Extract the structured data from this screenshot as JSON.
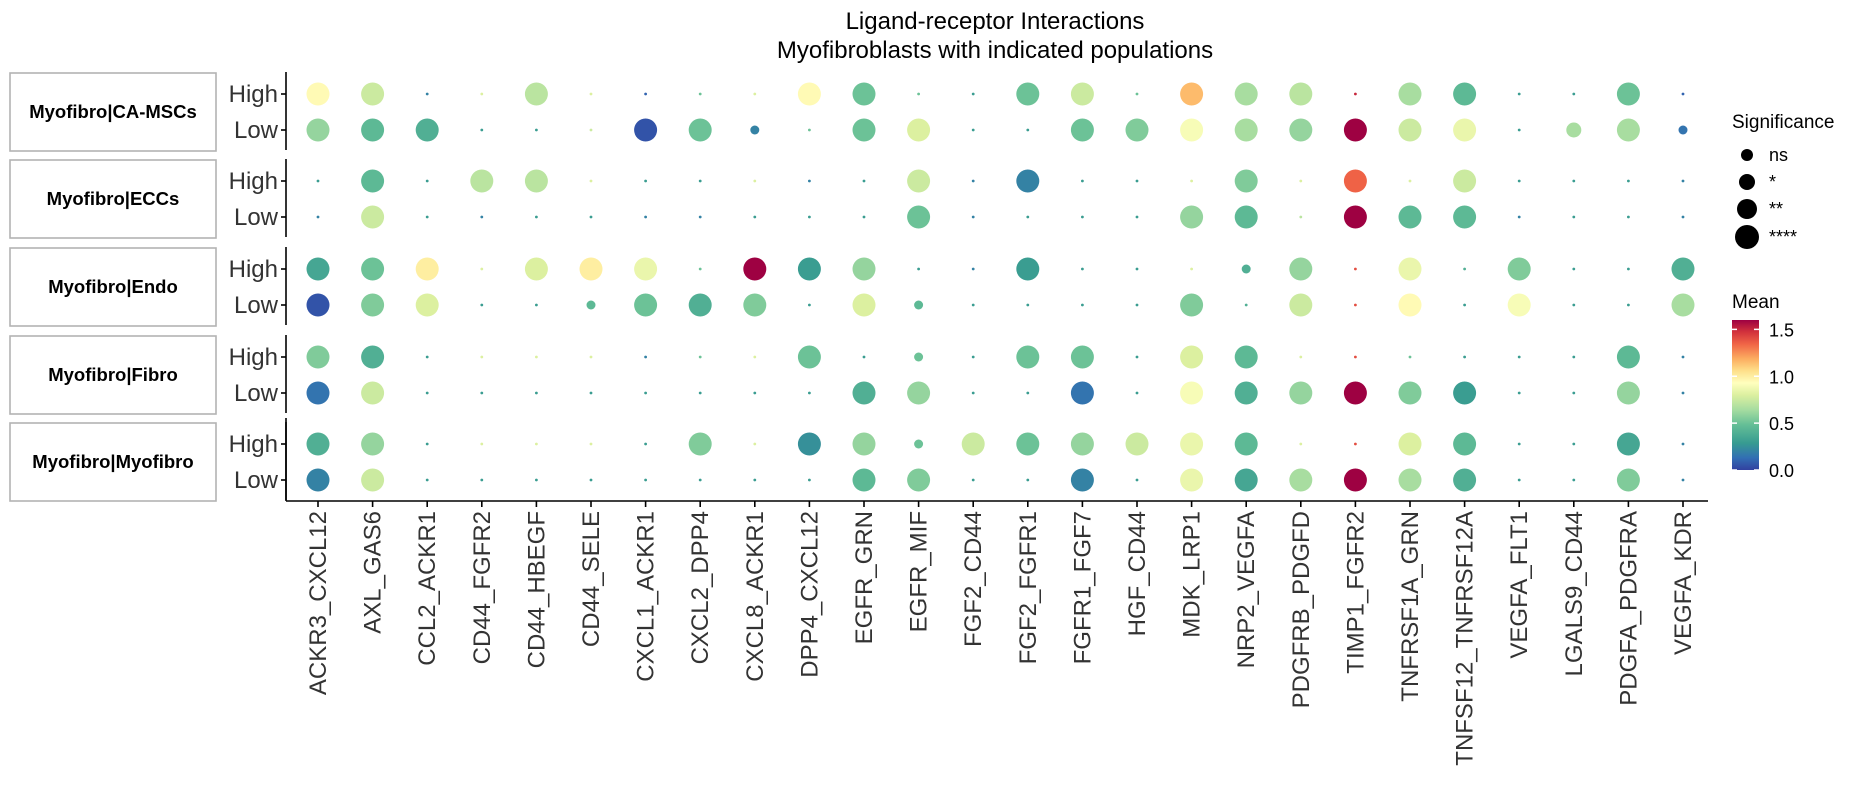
{
  "chart_data": {
    "type": "scatter",
    "title": [
      "Ligand-receptor Interactions",
      "Myofibroblasts with indicated populations"
    ],
    "xlabel": "",
    "ylabel": "",
    "pairs": [
      "ACKR3_CXCL12",
      "AXL_GAS6",
      "CCL2_ACKR1",
      "CD44_FGFR2",
      "CD44_HBEGF",
      "CD44_SELE",
      "CXCL1_ACKR1",
      "CXCL2_DPP4",
      "CXCL8_ACKR1",
      "DPP4_CXCL12",
      "EGFR_GRN",
      "EGFR_MIF",
      "FGF2_CD44",
      "FGF2_FGFR1",
      "FGFR1_FGF7",
      "HGF_CD44",
      "MDK_LRP1",
      "NRP2_VEGFA",
      "PDGFRB_PDGFD",
      "TIMP1_FGFR2",
      "TNFRSF1A_GRN",
      "TNFSF12_TNFRSF12A",
      "VEGFA_FLT1",
      "LGALS9_CD44",
      "PDGFA_PDGFRA",
      "VEGFA_KDR"
    ],
    "row_labels": [
      "High",
      "Low"
    ],
    "facets": [
      {
        "name": "Myofibro|CA-MSCs",
        "rows": [
          {
            "label": "High",
            "mean": [
              0.95,
              0.75,
              0.2,
              0.8,
              0.7,
              0.8,
              0.1,
              0.5,
              0.8,
              0.95,
              0.5,
              0.5,
              0.3,
              0.5,
              0.75,
              0.5,
              1.15,
              0.65,
              0.7,
              1.5,
              0.65,
              0.45,
              0.3,
              0.3,
              0.5,
              0.1
            ],
            "size": [
              3,
              3,
              0,
              0,
              3,
              0,
              0,
              0,
              0,
              3,
              3,
              0,
              0,
              3,
              3,
              0,
              3,
              3,
              3,
              0,
              3,
              3,
              0,
              0,
              3,
              0
            ]
          },
          {
            "label": "Low",
            "mean": [
              0.6,
              0.45,
              0.4,
              0.3,
              0.3,
              0.75,
              0.05,
              0.5,
              0.2,
              0.5,
              0.5,
              0.8,
              0.3,
              0.3,
              0.5,
              0.55,
              0.9,
              0.65,
              0.6,
              1.6,
              0.75,
              0.85,
              0.3,
              0.65,
              0.65,
              0.15
            ],
            "size": [
              3,
              3,
              3,
              0,
              0,
              0,
              3,
              3,
              1,
              0,
              3,
              3,
              0,
              0,
              3,
              3,
              3,
              3,
              3,
              3,
              3,
              3,
              0,
              2,
              3,
              1
            ]
          }
        ]
      },
      {
        "name": "Myofibro|ECCs",
        "rows": [
          {
            "label": "High",
            "mean": [
              0.3,
              0.45,
              0.3,
              0.7,
              0.7,
              0.8,
              0.3,
              0.3,
              0.8,
              0.2,
              0.3,
              0.75,
              0.2,
              0.2,
              0.3,
              0.3,
              0.8,
              0.55,
              0.8,
              1.35,
              0.8,
              0.75,
              0.3,
              0.3,
              0.3,
              0.2
            ],
            "size": [
              0,
              3,
              0,
              3,
              3,
              0,
              0,
              0,
              0,
              0,
              0,
              3,
              0,
              3,
              0,
              0,
              0,
              3,
              0,
              3,
              0,
              3,
              0,
              0,
              0,
              0
            ]
          },
          {
            "label": "Low",
            "mean": [
              0.2,
              0.75,
              0.3,
              0.2,
              0.3,
              0.3,
              0.2,
              0.2,
              0.3,
              0.3,
              0.3,
              0.5,
              0.2,
              0.3,
              0.3,
              0.3,
              0.6,
              0.45,
              0.7,
              1.6,
              0.45,
              0.45,
              0.2,
              0.3,
              0.3,
              0.2
            ],
            "size": [
              0,
              3,
              0,
              0,
              0,
              0,
              0,
              0,
              0,
              0,
              0,
              3,
              0,
              0,
              0,
              0,
              3,
              3,
              0,
              3,
              3,
              3,
              0,
              0,
              0,
              0
            ]
          }
        ]
      },
      {
        "name": "Myofibro|Endo",
        "rows": [
          {
            "label": "High",
            "mean": [
              0.35,
              0.5,
              1.0,
              0.8,
              0.8,
              1.0,
              0.85,
              0.5,
              1.6,
              0.3,
              0.6,
              0.3,
              0.2,
              0.3,
              0.3,
              0.3,
              0.8,
              0.4,
              0.6,
              1.4,
              0.85,
              0.4,
              0.55,
              0.3,
              0.3,
              0.4
            ],
            "size": [
              3,
              3,
              3,
              0,
              3,
              3,
              3,
              0,
              3,
              3,
              3,
              0,
              0,
              3,
              0,
              0,
              0,
              1,
              3,
              0,
              3,
              0,
              3,
              0,
              0,
              3
            ]
          },
          {
            "label": "Low",
            "mean": [
              0.05,
              0.55,
              0.8,
              0.3,
              0.3,
              0.45,
              0.5,
              0.4,
              0.55,
              0.3,
              0.8,
              0.45,
              0.3,
              0.3,
              0.3,
              0.3,
              0.55,
              0.4,
              0.75,
              1.4,
              0.95,
              0.3,
              0.9,
              0.3,
              0.3,
              0.65
            ],
            "size": [
              3,
              3,
              3,
              0,
              0,
              1,
              3,
              3,
              3,
              0,
              3,
              1,
              0,
              0,
              0,
              0,
              3,
              0,
              3,
              0,
              3,
              0,
              3,
              0,
              0,
              3
            ]
          }
        ]
      },
      {
        "name": "Myofibro|Fibro",
        "rows": [
          {
            "label": "High",
            "mean": [
              0.55,
              0.4,
              0.3,
              0.8,
              0.8,
              0.8,
              0.2,
              0.5,
              0.8,
              0.5,
              0.3,
              0.5,
              0.3,
              0.5,
              0.5,
              0.3,
              0.8,
              0.45,
              0.8,
              1.4,
              0.5,
              0.3,
              0.3,
              0.3,
              0.45,
              0.2
            ],
            "size": [
              3,
              3,
              0,
              0,
              0,
              0,
              0,
              0,
              0,
              3,
              0,
              1,
              0,
              3,
              3,
              0,
              3,
              3,
              0,
              0,
              0,
              0,
              0,
              0,
              3,
              0
            ]
          },
          {
            "label": "Low",
            "mean": [
              0.15,
              0.75,
              0.3,
              0.3,
              0.3,
              0.3,
              0.3,
              0.3,
              0.3,
              0.3,
              0.4,
              0.6,
              0.3,
              0.3,
              0.15,
              0.3,
              0.9,
              0.4,
              0.6,
              1.6,
              0.55,
              0.3,
              0.3,
              0.3,
              0.6,
              0.2
            ],
            "size": [
              3,
              3,
              0,
              0,
              0,
              0,
              0,
              0,
              0,
              0,
              3,
              3,
              0,
              0,
              3,
              0,
              3,
              3,
              3,
              3,
              3,
              3,
              0,
              0,
              3,
              0
            ]
          }
        ]
      },
      {
        "name": "Myofibro|Myofibro",
        "rows": [
          {
            "label": "High",
            "mean": [
              0.4,
              0.6,
              0.3,
              0.8,
              0.8,
              0.8,
              0.3,
              0.55,
              0.8,
              0.25,
              0.6,
              0.5,
              0.75,
              0.5,
              0.6,
              0.75,
              0.85,
              0.45,
              0.8,
              1.4,
              0.8,
              0.45,
              0.3,
              0.3,
              0.35,
              0.2
            ],
            "size": [
              3,
              3,
              0,
              0,
              0,
              0,
              0,
              3,
              0,
              3,
              3,
              1,
              3,
              3,
              3,
              3,
              3,
              3,
              0,
              0,
              3,
              3,
              0,
              0,
              3,
              0
            ]
          },
          {
            "label": "Low",
            "mean": [
              0.2,
              0.75,
              0.3,
              0.3,
              0.3,
              0.3,
              0.3,
              0.3,
              0.3,
              0.3,
              0.45,
              0.55,
              0.3,
              0.3,
              0.2,
              0.3,
              0.85,
              0.35,
              0.65,
              1.6,
              0.65,
              0.4,
              0.3,
              0.3,
              0.55,
              0.2
            ],
            "size": [
              3,
              3,
              0,
              0,
              0,
              0,
              0,
              0,
              0,
              0,
              3,
              3,
              0,
              0,
              3,
              0,
              3,
              3,
              3,
              3,
              3,
              3,
              0,
              0,
              3,
              0
            ]
          }
        ]
      }
    ],
    "legend": {
      "significance_title": "Significance",
      "significance_levels": [
        "ns",
        "*",
        "**",
        "****"
      ],
      "mean_title": "Mean",
      "mean_ticks": [
        0.0,
        0.5,
        1.0,
        1.5
      ],
      "mean_tick_labels": [
        "0.0",
        "0.5",
        "1.0",
        "1.5"
      ],
      "mean_range": [
        0,
        1.6
      ],
      "colorscale": "Spectral"
    },
    "legend_position": "right",
    "grid": false
  }
}
